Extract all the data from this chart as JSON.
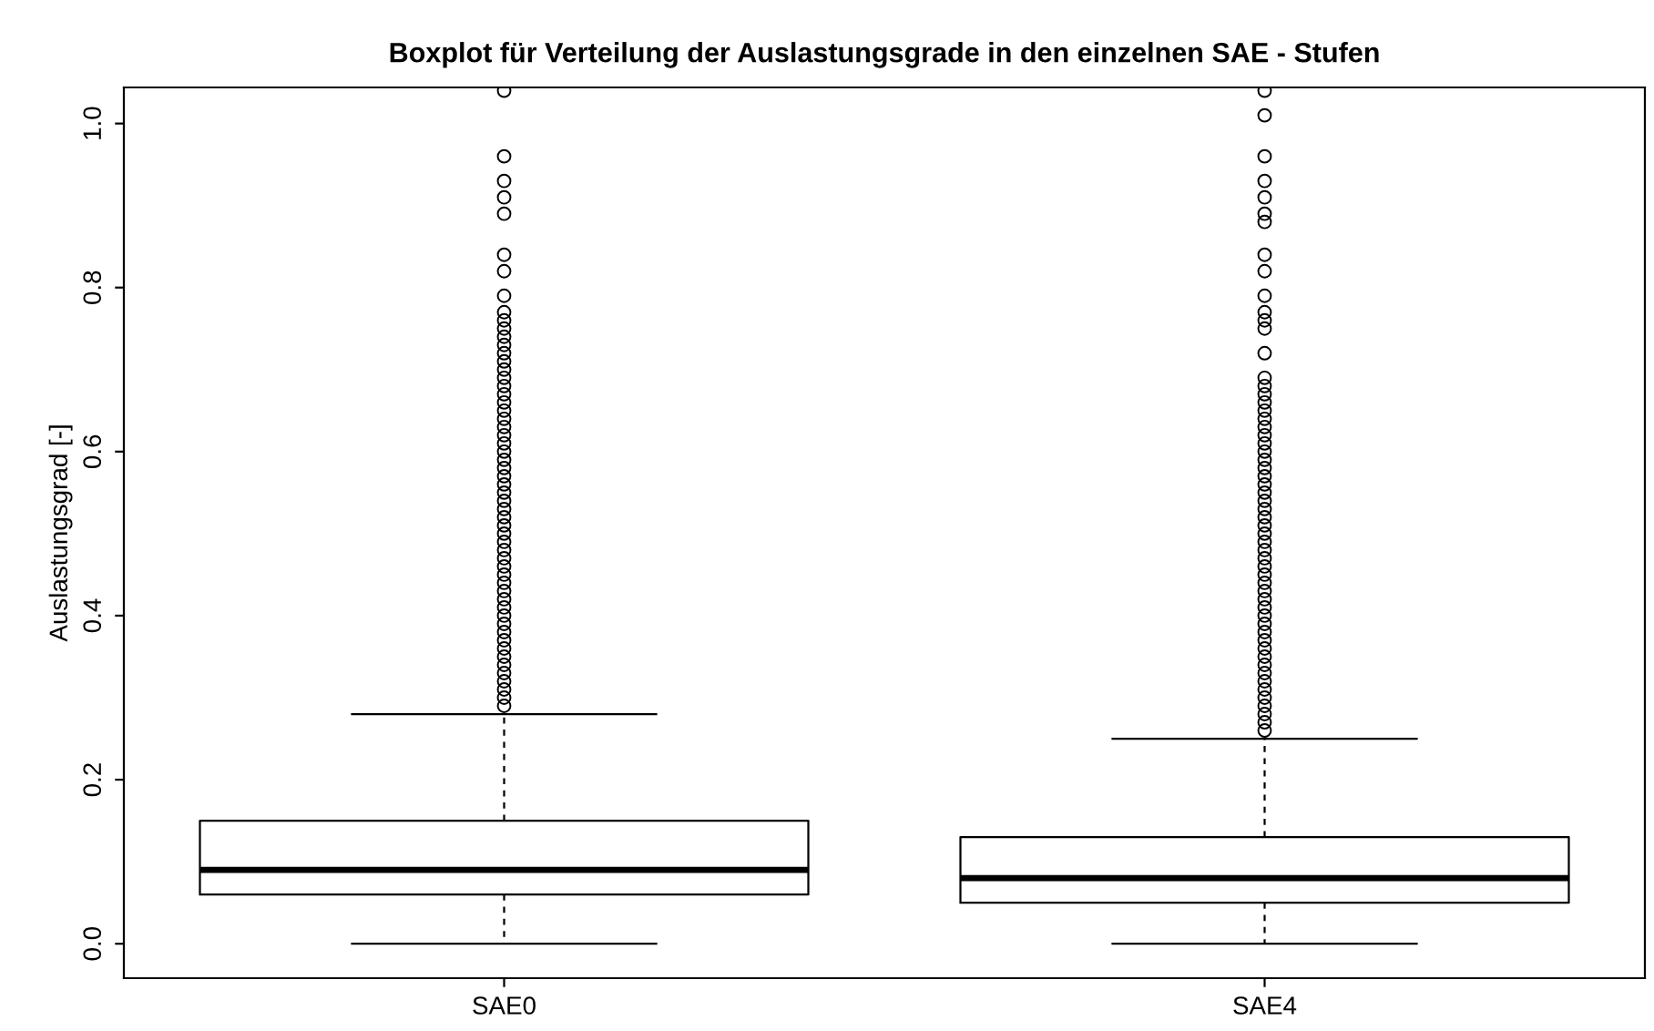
{
  "chart_data": {
    "type": "box",
    "title": "Boxplot für Verteilung der Auslastungsgrade in den einzelnen SAE - Stufen",
    "ylabel": "Auslastungsgrad [-]",
    "categories": [
      "SAE0",
      "SAE4"
    ],
    "ylim": [
      -0.042,
      1.044
    ],
    "yticks": [
      {
        "value": 0,
        "label": "0.0"
      },
      0.2,
      0.4,
      0.6,
      0.8,
      {
        "value": 1,
        "label": "1.0"
      }
    ],
    "grid": false,
    "boxes": [
      {
        "low": 0,
        "q1": 0.06,
        "median": 0.09,
        "q3": 0.15,
        "high": 0.28,
        "outliers": [
          0.29,
          0.3,
          0.31,
          0.32,
          0.33,
          0.34,
          0.35,
          0.36,
          0.37,
          0.38,
          0.39,
          0.4,
          0.41,
          0.42,
          0.43,
          0.44,
          0.45,
          0.46,
          0.47,
          0.48,
          0.49,
          0.5,
          0.51,
          0.52,
          0.53,
          0.54,
          0.55,
          0.56,
          0.57,
          0.58,
          0.59,
          0.6,
          0.61,
          0.62,
          0.63,
          0.64,
          0.65,
          0.66,
          0.67,
          0.68,
          0.69,
          0.7,
          0.71,
          0.72,
          0.73,
          0.74,
          0.75,
          0.76,
          0.77,
          0.79,
          0.82,
          0.84,
          0.89,
          0.91,
          0.93,
          0.96,
          1.04
        ]
      },
      {
        "low": 0,
        "q1": 0.05,
        "median": 0.08,
        "q3": 0.13,
        "high": 0.25,
        "outliers": [
          0.26,
          0.27,
          0.28,
          0.29,
          0.3,
          0.31,
          0.32,
          0.33,
          0.34,
          0.35,
          0.36,
          0.37,
          0.38,
          0.39,
          0.4,
          0.41,
          0.42,
          0.43,
          0.44,
          0.45,
          0.46,
          0.47,
          0.48,
          0.49,
          0.5,
          0.51,
          0.52,
          0.53,
          0.54,
          0.55,
          0.56,
          0.57,
          0.58,
          0.59,
          0.6,
          0.61,
          0.62,
          0.63,
          0.64,
          0.65,
          0.66,
          0.67,
          0.68,
          0.69,
          0.72,
          0.75,
          0.76,
          0.77,
          0.79,
          0.82,
          0.84,
          0.88,
          0.89,
          0.91,
          0.93,
          0.96,
          1.01,
          1.04
        ]
      }
    ]
  }
}
